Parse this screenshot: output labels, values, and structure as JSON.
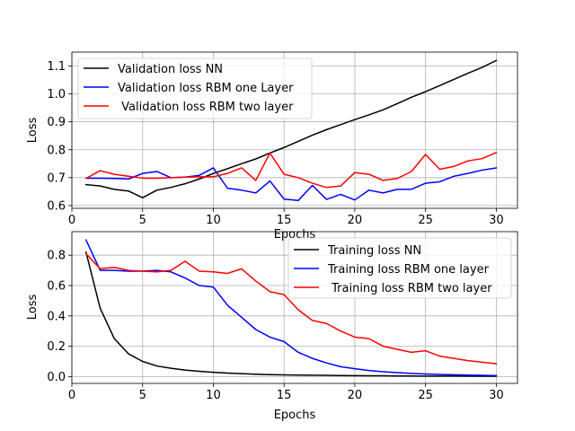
{
  "chart_data": [
    {
      "type": "line",
      "title": "",
      "xlabel": "Epochs",
      "ylabel": "Loss",
      "xlim": [
        0,
        31.5
      ],
      "ylim": [
        0.59,
        1.15
      ],
      "xticks": [
        0,
        5,
        10,
        15,
        20,
        25,
        30
      ],
      "yticks": [
        0.6,
        0.7,
        0.8,
        0.9,
        1.0,
        1.1
      ],
      "ytick_labels": [
        "0.6",
        "0.7",
        "0.8",
        "0.9",
        "1.0",
        "1.1"
      ],
      "grid": true,
      "legend_placement": "upper-left",
      "x": [
        1,
        2,
        3,
        4,
        5,
        6,
        7,
        8,
        9,
        10,
        11,
        12,
        13,
        14,
        15,
        16,
        17,
        18,
        19,
        20,
        21,
        22,
        23,
        24,
        25,
        26,
        27,
        28,
        29,
        30
      ],
      "series": [
        {
          "name": "Validation loss NN",
          "color": "#000000",
          "values": [
            0.675,
            0.67,
            0.658,
            0.652,
            0.628,
            0.655,
            0.665,
            0.678,
            0.695,
            0.715,
            0.732,
            0.75,
            0.767,
            0.788,
            0.808,
            0.83,
            0.852,
            0.872,
            0.89,
            0.908,
            0.925,
            0.943,
            0.965,
            0.988,
            1.008,
            1.03,
            1.052,
            1.074,
            1.095,
            1.12
          ]
        },
        {
          "name": "Validation loss RBM one Layer",
          "color": "#0000ff",
          "values": [
            0.698,
            0.698,
            0.697,
            0.695,
            0.715,
            0.722,
            0.7,
            0.702,
            0.708,
            0.735,
            0.662,
            0.655,
            0.645,
            0.688,
            0.623,
            0.618,
            0.672,
            0.622,
            0.64,
            0.62,
            0.655,
            0.645,
            0.658,
            0.658,
            0.68,
            0.685,
            0.705,
            0.715,
            0.727,
            0.735
          ]
        },
        {
          "name": " Validation loss RBM two layer",
          "color": "#ff0000",
          "values": [
            0.697,
            0.725,
            0.712,
            0.705,
            0.698,
            0.698,
            0.7,
            0.702,
            0.703,
            0.703,
            0.715,
            0.735,
            0.69,
            0.788,
            0.712,
            0.7,
            0.68,
            0.665,
            0.67,
            0.718,
            0.712,
            0.69,
            0.697,
            0.722,
            0.783,
            0.73,
            0.74,
            0.76,
            0.768,
            0.79
          ]
        }
      ]
    },
    {
      "type": "line",
      "title": "",
      "xlabel": "Epochs",
      "ylabel": "Loss",
      "xlim": [
        0,
        31.5
      ],
      "ylim": [
        -0.045,
        0.955
      ],
      "xticks": [
        0,
        5,
        10,
        15,
        20,
        25,
        30
      ],
      "yticks": [
        0.0,
        0.2,
        0.4,
        0.6,
        0.8
      ],
      "ytick_labels": [
        "0.0",
        "0.2",
        "0.4",
        "0.6",
        "0.8"
      ],
      "grid": true,
      "legend_placement": "upper-right",
      "x": [
        1,
        2,
        3,
        4,
        5,
        6,
        7,
        8,
        9,
        10,
        11,
        12,
        13,
        14,
        15,
        16,
        17,
        18,
        19,
        20,
        21,
        22,
        23,
        24,
        25,
        26,
        27,
        28,
        29,
        30
      ],
      "series": [
        {
          "name": "Training loss NN",
          "color": "#000000",
          "values": [
            0.82,
            0.45,
            0.25,
            0.15,
            0.1,
            0.07,
            0.055,
            0.043,
            0.035,
            0.028,
            0.023,
            0.019,
            0.016,
            0.013,
            0.011,
            0.01,
            0.009,
            0.008,
            0.007,
            0.006,
            0.005,
            0.005,
            0.004,
            0.004,
            0.003,
            0.003,
            0.003,
            0.002,
            0.002,
            0.002
          ]
        },
        {
          "name": "Training loss RBM one layer",
          "color": "#0000ff",
          "values": [
            0.9,
            0.7,
            0.7,
            0.695,
            0.695,
            0.7,
            0.69,
            0.65,
            0.6,
            0.59,
            0.47,
            0.39,
            0.31,
            0.26,
            0.23,
            0.16,
            0.12,
            0.09,
            0.065,
            0.052,
            0.04,
            0.032,
            0.026,
            0.021,
            0.017,
            0.014,
            0.012,
            0.01,
            0.008,
            0.006
          ]
        },
        {
          "name": " Training loss RBM two layer",
          "color": "#ff0000",
          "values": [
            0.81,
            0.71,
            0.72,
            0.7,
            0.695,
            0.69,
            0.7,
            0.76,
            0.695,
            0.69,
            0.68,
            0.71,
            0.63,
            0.56,
            0.54,
            0.44,
            0.37,
            0.35,
            0.3,
            0.26,
            0.25,
            0.2,
            0.18,
            0.16,
            0.17,
            0.135,
            0.12,
            0.105,
            0.095,
            0.085
          ]
        }
      ]
    }
  ]
}
